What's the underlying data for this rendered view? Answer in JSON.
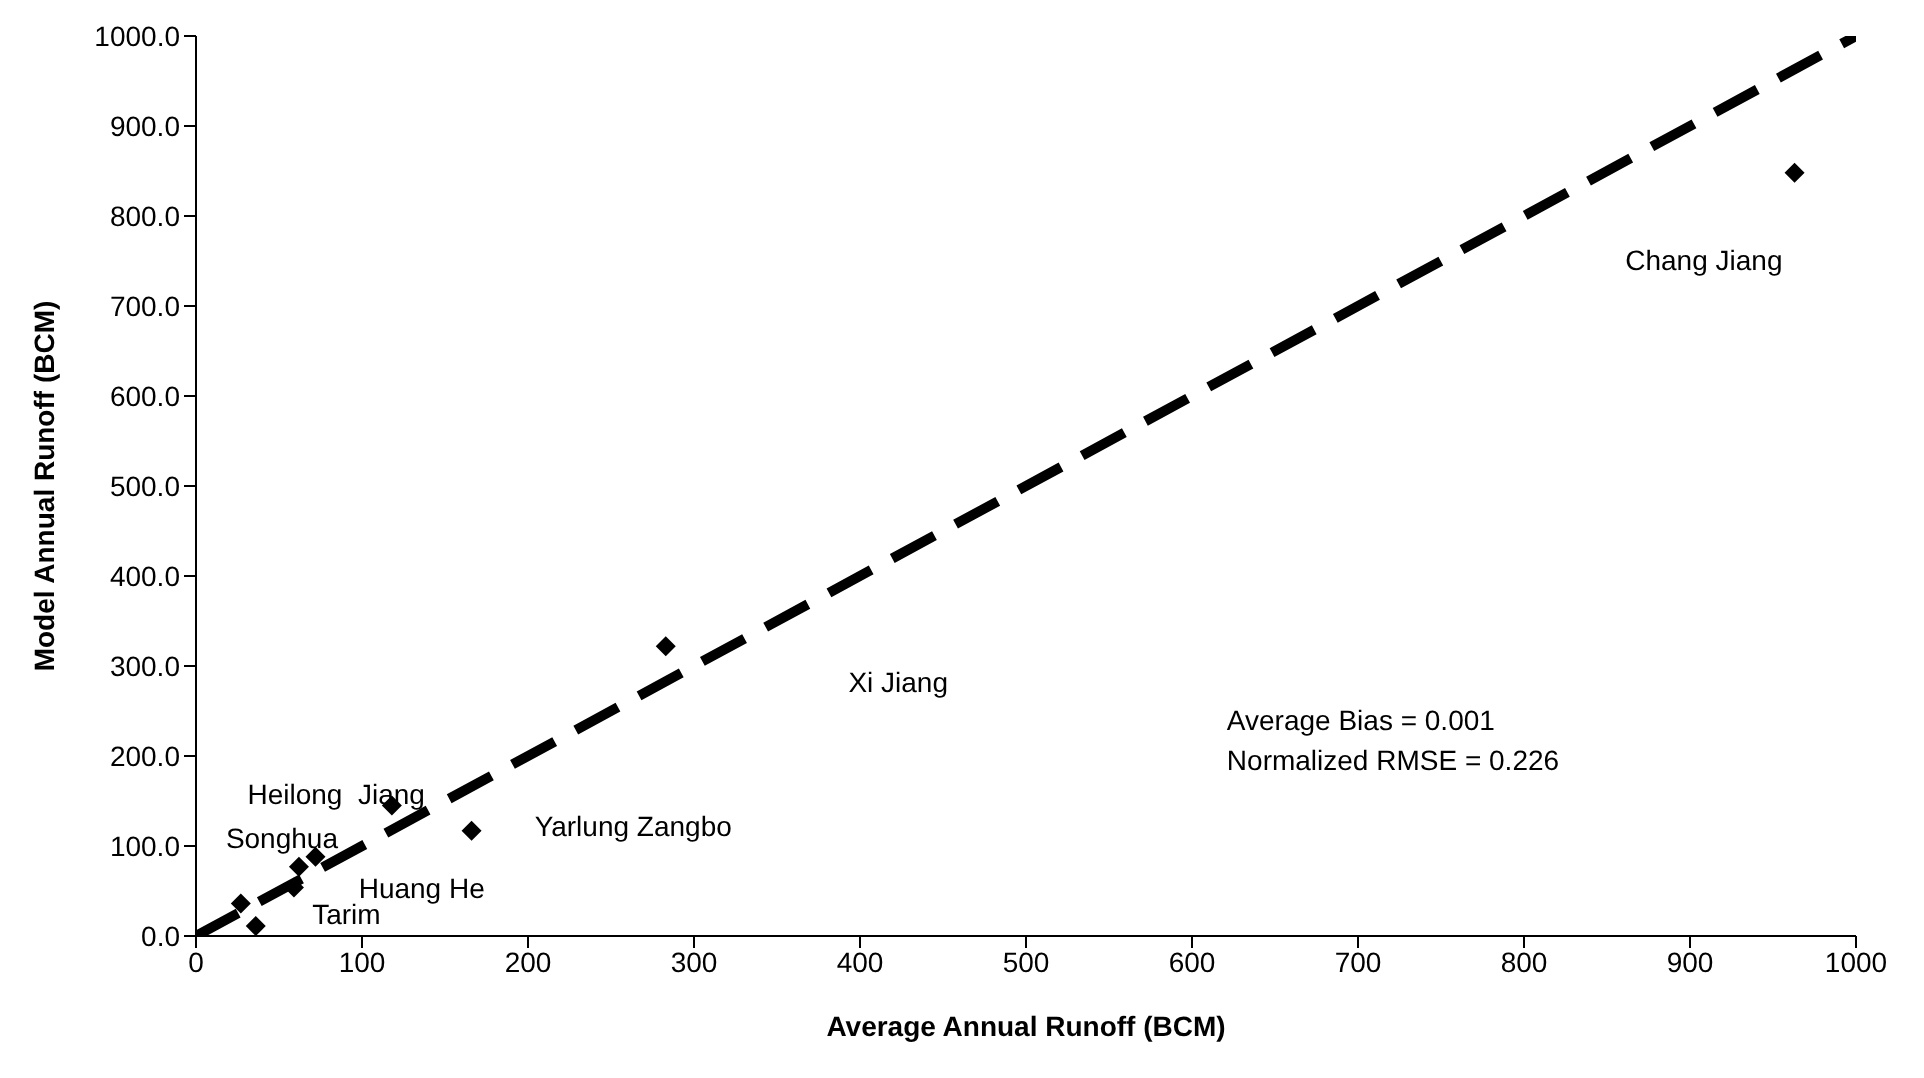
{
  "chart_data": {
    "type": "scatter",
    "xlabel": "Average Annual Runoff (BCM)",
    "ylabel": "Model Annual Runoff (BCM)",
    "xlim": [
      0,
      1000
    ],
    "xticks": [
      0,
      100,
      200,
      300,
      400,
      500,
      600,
      700,
      800,
      900,
      1000
    ],
    "ylim": [
      0,
      1000
    ],
    "yticks": [
      {
        "value": 0,
        "label": "0.0"
      },
      {
        "value": 100,
        "label": "100.0"
      },
      {
        "value": 200,
        "label": "200.0"
      },
      {
        "value": 300,
        "label": "300.0"
      },
      {
        "value": 400,
        "label": "400.0"
      },
      {
        "value": 500,
        "label": "500.0"
      },
      {
        "value": 600,
        "label": "600.0"
      },
      {
        "value": 700,
        "label": "700.0"
      },
      {
        "value": 800,
        "label": "800.0"
      },
      {
        "value": 900,
        "label": "900.0"
      },
      {
        "value": 1000,
        "label": "1000.0"
      }
    ],
    "grid": false,
    "legend": false,
    "series": [
      {
        "color": "#000000",
        "marker": "diamond",
        "x": [
          963,
          283,
          118,
          166,
          72,
          62,
          59,
          27,
          36
        ],
        "values": [
          848,
          322,
          145,
          117,
          88,
          77,
          54,
          36,
          11
        ]
      },
      {
        "type": "line",
        "color": "#000000",
        "line_style": "dashed",
        "marker": "none",
        "x": [
          0,
          1000
        ],
        "values": [
          0,
          1000
        ]
      }
    ],
    "annotations": [
      "Chang Jiang",
      "Xi Jiang",
      "Heilong  Jiang",
      "Songhua",
      "Yarlung Zangbo",
      "Huang He",
      "Tarim",
      "Average Bias = 0.001",
      "Normalized RMSE = 0.226"
    ]
  }
}
